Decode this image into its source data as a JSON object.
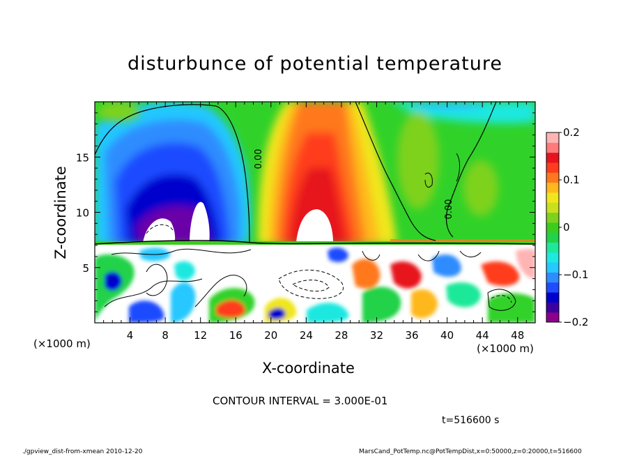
{
  "chart_data": {
    "type": "heatmap",
    "title": "disturbunce of potential temperature",
    "xlabel": "X-coordinate",
    "ylabel": "Z-coordinate",
    "x_unit_left": "(×1000 m)",
    "x_unit_right": "(×1000 m)",
    "xlim": [
      0,
      50
    ],
    "ylim": [
      0,
      20
    ],
    "x_ticks": [
      4,
      8,
      12,
      16,
      20,
      24,
      28,
      32,
      36,
      40,
      44,
      48
    ],
    "y_ticks": [
      5,
      10,
      15
    ],
    "colorbar": {
      "range": [
        -0.2,
        0.2
      ],
      "ticks": [
        "0.2",
        "0.1",
        "0",
        "−0.1",
        "−0.2"
      ],
      "colors": [
        "#8b008b",
        "#3a00a0",
        "#0000cd",
        "#1e4cff",
        "#2f8cff",
        "#25c8ff",
        "#1ee8e0",
        "#1ee89a",
        "#22d24a",
        "#3ccc1e",
        "#7ed21e",
        "#c8e01e",
        "#f0e61e",
        "#ffb81e",
        "#ff781e",
        "#ff3c1e",
        "#e6141e",
        "#ff7a7a",
        "#ffb4b4"
      ]
    },
    "contour_labels": [
      "0.00",
      "0.00"
    ],
    "contour_interval": "CONTOUR INTERVAL = 3.000E-01",
    "time": "t=516600 s"
  },
  "footer": {
    "left": "./gpview_dist-from-xmean  2010-12-20",
    "right": "MarsCand_PotTemp.nc@PotTempDist,x=0:50000,z=0:20000,t=516600"
  }
}
